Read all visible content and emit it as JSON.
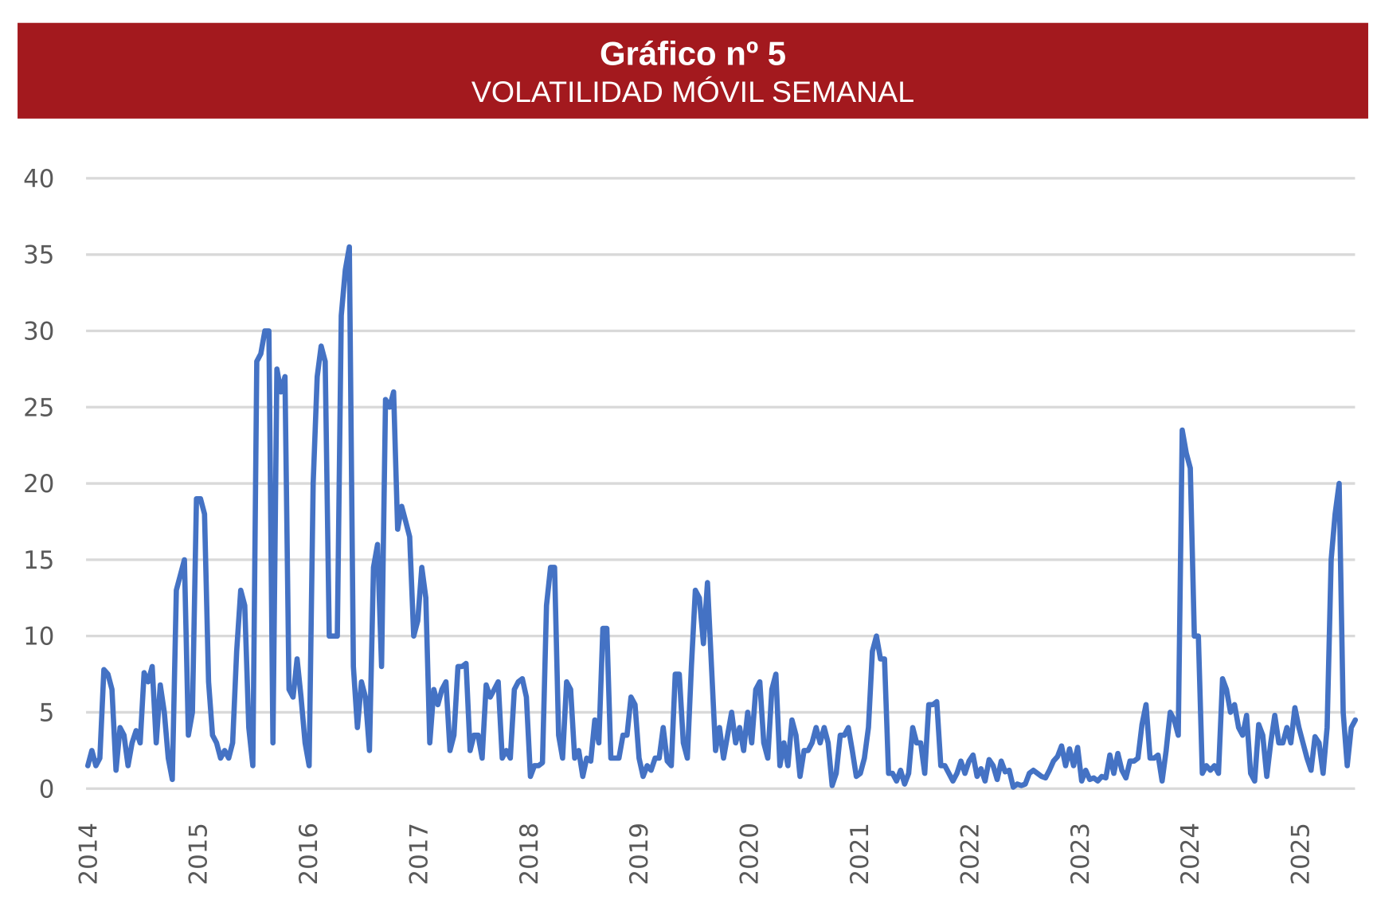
{
  "header": {
    "title": "Gráfico nº 5",
    "subtitle": "VOLATILIDAD MÓVIL SEMANAL",
    "background_color": "#a3191e"
  },
  "chart_data": {
    "type": "line",
    "title": "Gráfico nº 5",
    "subtitle": "VOLATILIDAD MÓVIL SEMANAL",
    "xlabel": "",
    "ylabel": "",
    "ylim": [
      0,
      40
    ],
    "yticks": [
      "0",
      "5",
      "10",
      "15",
      "20",
      "25",
      "30",
      "35",
      "40"
    ],
    "xlim": [
      2014,
      2025.5
    ],
    "xticks": [
      "2014",
      "2015",
      "2016",
      "2017",
      "2018",
      "2019",
      "2020",
      "2021",
      "2022",
      "2023",
      "2024",
      "2025"
    ],
    "grid": true,
    "legend": "none",
    "line_color": "#4472c4",
    "series": [
      {
        "name": "Volatilidad móvil semanal",
        "x_start": 2014.0,
        "x_end": 2025.5,
        "values": [
          1.5,
          2.5,
          1.5,
          2,
          7.8,
          7.5,
          6.5,
          1.2,
          4,
          3.5,
          1.5,
          3,
          3.8,
          3,
          7.6,
          7,
          8,
          3,
          6.8,
          5,
          2,
          0.6,
          13,
          14,
          15,
          3.5,
          5,
          19,
          19,
          18,
          7,
          3.5,
          3,
          2,
          2.5,
          2,
          3,
          9,
          13,
          12,
          4,
          1.5,
          28,
          28.5,
          30,
          30,
          3,
          27.5,
          26,
          27,
          6.5,
          6,
          8.5,
          6,
          3,
          1.5,
          20,
          27,
          29,
          28,
          10,
          10,
          10,
          31,
          34,
          35.5,
          8,
          4,
          7,
          6,
          2.5,
          14.5,
          16,
          8,
          25.5,
          25,
          26,
          17,
          18.5,
          17.5,
          16.5,
          10,
          11,
          14.5,
          12.5,
          3,
          6.5,
          5.5,
          6.5,
          7,
          2.5,
          3.5,
          8,
          8,
          8.2,
          2.5,
          3.5,
          3.5,
          2,
          6.8,
          6,
          6.5,
          7,
          2,
          2.5,
          2,
          6.5,
          7,
          7.2,
          6,
          0.8,
          1.5,
          1.5,
          1.7,
          12,
          14.5,
          14.5,
          3.5,
          2,
          7,
          6.5,
          2,
          2.5,
          0.8,
          2,
          1.8,
          4.5,
          3,
          10.5,
          10.5,
          2,
          2,
          2,
          3.5,
          3.5,
          6,
          5.5,
          2,
          0.8,
          1.5,
          1.2,
          2,
          2,
          4,
          1.8,
          1.5,
          7.5,
          7.5,
          3,
          2,
          8,
          13,
          12.5,
          9.5,
          13.5,
          8,
          2.5,
          4,
          2,
          3.5,
          5,
          3,
          4,
          2.5,
          5,
          3,
          6.5,
          7,
          3,
          2,
          6.5,
          7.5,
          1.5,
          3,
          1.5,
          4.5,
          3.5,
          0.8,
          2.5,
          2.5,
          3,
          4,
          3,
          4,
          3,
          0.2,
          1,
          3.5,
          3.5,
          4,
          2.5,
          0.8,
          1,
          2,
          4,
          9,
          10,
          8.5,
          8.5,
          1,
          1,
          0.5,
          1.2,
          0.3,
          1,
          4,
          3,
          3,
          1,
          5.5,
          5.5,
          5.7,
          1.5,
          1.5,
          1,
          0.5,
          1,
          1.8,
          1,
          1.8,
          2.2,
          0.8,
          1.3,
          0.5,
          1.9,
          1.5,
          0.6,
          1.8,
          1.1,
          1.2,
          0.1,
          0.3,
          0.2,
          0.3,
          1,
          1.2,
          1,
          0.8,
          0.7,
          1.2,
          1.8,
          2.1,
          2.8,
          1.5,
          2.6,
          1.5,
          2.7,
          0.5,
          1.2,
          0.6,
          0.7,
          0.5,
          0.8,
          0.7,
          2.2,
          1,
          2.3,
          1.2,
          0.7,
          1.8,
          1.8,
          2,
          4.2,
          5.5,
          2,
          2,
          2.2,
          0.5,
          2.5,
          5,
          4.5,
          3.5,
          23.5,
          22,
          21,
          10,
          10,
          1,
          1.5,
          1.2,
          1.5,
          1,
          7.2,
          6.5,
          5,
          5.5,
          4,
          3.5,
          4.8,
          1,
          0.5,
          4.2,
          3.5,
          0.8,
          3,
          4.8,
          3,
          3,
          4,
          3,
          5.3,
          4,
          3,
          2,
          1.2,
          3.4,
          3,
          1,
          4,
          15,
          18,
          20,
          5,
          1.5,
          4,
          4.5
        ]
      }
    ]
  }
}
